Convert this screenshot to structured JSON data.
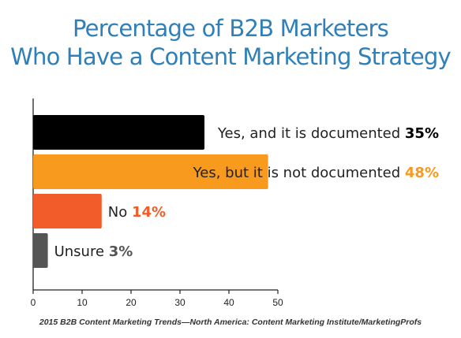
{
  "colors": {
    "title": "#2f7fb8",
    "axis": "#222222",
    "source": "#333333"
  },
  "chart_data": {
    "type": "bar",
    "orientation": "horizontal",
    "title_lines": [
      "Percentage of B2B Marketers",
      "Who Have a Content Marketing Strategy"
    ],
    "source": "2015 B2B Content Marketing Trends—North America: Content Marketing Institute/MarketingProfs",
    "xlim": [
      0,
      50
    ],
    "xticks": [
      "0",
      "10",
      "20",
      "30",
      "40",
      "50"
    ],
    "bars": [
      {
        "label": "Yes, and it is documented",
        "value": 35,
        "value_label": "35%",
        "color": "#000000",
        "value_color": "#000000"
      },
      {
        "label": "Yes, but it is not documented",
        "value": 48,
        "value_label": "48%",
        "color": "#f79a1e",
        "value_color": "#f79a1e"
      },
      {
        "label": "No",
        "value": 14,
        "value_label": "14%",
        "color": "#f25c2b",
        "value_color": "#f25c2b"
      },
      {
        "label": "Unsure",
        "value": 3,
        "value_label": "3%",
        "color": "#555555",
        "value_color": "#555555"
      }
    ],
    "grid": false
  }
}
